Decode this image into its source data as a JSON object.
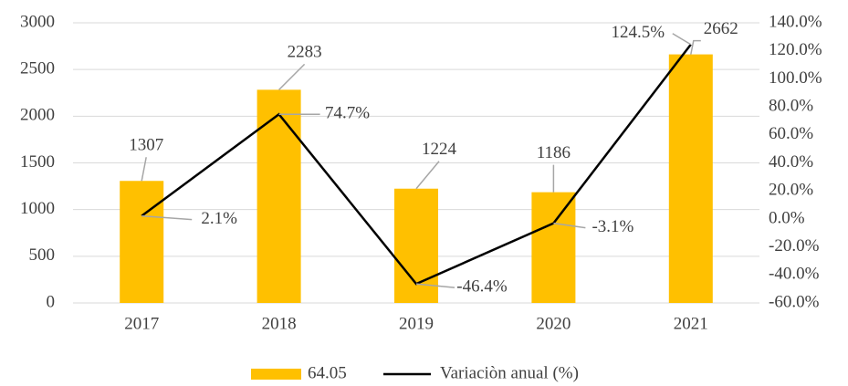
{
  "chart_data": {
    "type": "bar-line",
    "categories": [
      "2017",
      "2018",
      "2019",
      "2020",
      "2021"
    ],
    "series": [
      {
        "name": "64.05",
        "color": "#ffc000",
        "type": "bar",
        "values": [
          1307,
          2283,
          1224,
          1186,
          2662
        ]
      },
      {
        "name": "Variaciòn anual (%)",
        "color": "#000000",
        "type": "line",
        "axis": "y2",
        "values": [
          2.1,
          74.7,
          -46.4,
          -3.1,
          124.5
        ],
        "value_labels": [
          "2.1%",
          "74.7%",
          "-46.4%",
          "-3.1%",
          "124.5%"
        ]
      }
    ],
    "ylim": [
      0,
      3000
    ],
    "yticks": [
      0,
      500,
      1000,
      1500,
      2000,
      2500,
      3000
    ],
    "y2lim": [
      -60,
      140
    ],
    "y2ticks": [
      {
        "value": -60,
        "label": "-60.0%"
      },
      {
        "value": -40,
        "label": "-40.0%"
      },
      {
        "value": -20,
        "label": "-20.0%"
      },
      {
        "value": 0,
        "label": "0.0%"
      },
      {
        "value": 20,
        "label": "20.0%"
      },
      {
        "value": 40,
        "label": "40.0%"
      },
      {
        "value": 60,
        "label": "60.0%"
      },
      {
        "value": 80,
        "label": "80.0%"
      },
      {
        "value": 100,
        "label": "100.0%"
      },
      {
        "value": 120,
        "label": "120.0%"
      },
      {
        "value": 140,
        "label": "140.0%"
      }
    ],
    "grid": true,
    "legend": "bottom"
  }
}
